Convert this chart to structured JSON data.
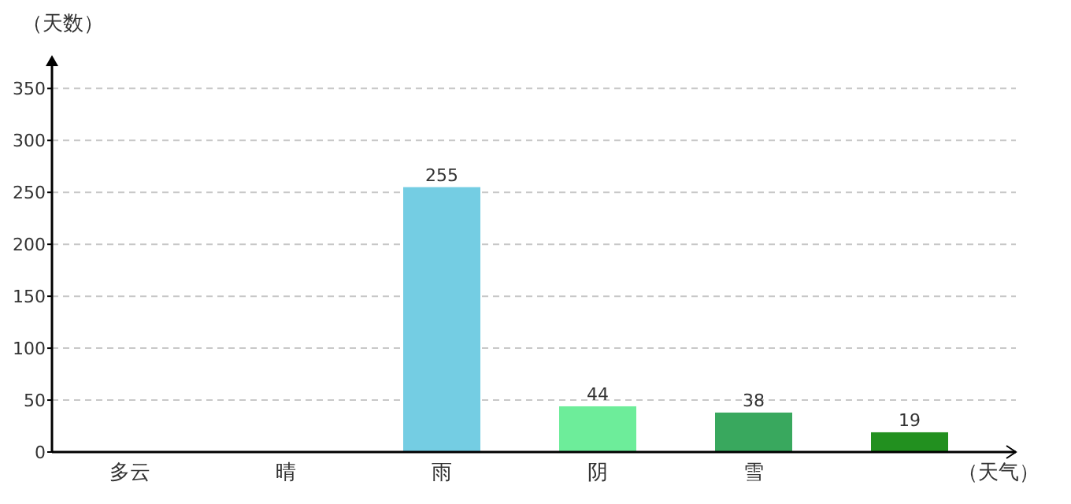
{
  "chart_data": {
    "type": "bar",
    "ylabel": "（天数）",
    "xlabel": "（天气）",
    "categories": [
      "多云",
      "晴",
      "雨",
      "阴",
      "雪",
      null
    ],
    "values": [
      null,
      null,
      255,
      44,
      38,
      19
    ],
    "colors": [
      null,
      null,
      "#74cde3",
      "#6ded9a",
      "#39a85e",
      "#22901f"
    ],
    "ylim": [
      0,
      373
    ],
    "yticks": [
      0,
      50,
      100,
      150,
      200,
      250,
      300,
      350
    ],
    "grid": "y",
    "data_labels": true
  }
}
